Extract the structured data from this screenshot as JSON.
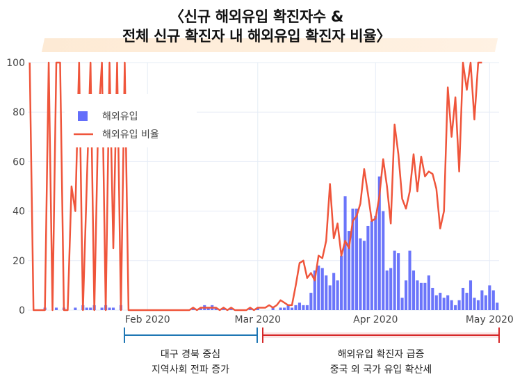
{
  "title": {
    "line1": "〈신규 해외유입 확진자수 &",
    "line2": "전체 신규 확진자 내 해외유입 확진자 비율〉"
  },
  "colors": {
    "bar": "#636efa",
    "line": "#ef553b",
    "grid": "#e5ecf6",
    "annotation_blue": "#1f77b4",
    "annotation_red": "#d62728"
  },
  "chart_data": {
    "type": "bar",
    "x_ticks": [
      "Feb 2020",
      "Mar 2020",
      "Apr 2020",
      "May 2020"
    ],
    "y_ticks": [
      "0",
      "20",
      "40",
      "60",
      "80",
      "100"
    ],
    "ylim": [
      0,
      100
    ],
    "grid": true,
    "legend_position": "top-left",
    "series": [
      {
        "name": "해외유입",
        "type": "bar",
        "values": [
          0,
          0,
          0,
          0,
          1,
          0,
          0,
          1,
          0,
          1,
          0,
          0,
          1,
          0,
          2,
          1,
          1,
          2,
          0,
          1,
          2,
          1,
          1,
          0,
          2,
          0,
          0,
          0,
          0,
          0,
          0,
          0,
          0,
          0,
          0,
          0,
          0,
          0,
          0,
          0,
          0,
          0,
          0,
          1,
          0,
          1,
          2,
          1,
          2,
          1,
          0,
          1,
          0,
          1,
          0,
          0,
          0,
          0,
          1,
          0,
          1,
          0,
          0,
          0,
          1,
          0,
          1,
          1,
          2,
          1,
          2,
          3,
          2,
          2,
          7,
          16,
          18,
          17,
          14,
          10,
          15,
          12,
          22,
          46,
          32,
          41,
          41,
          29,
          28,
          34,
          36,
          38,
          54,
          40,
          16,
          17,
          24,
          23,
          5,
          12,
          24,
          16,
          12,
          11,
          11,
          14,
          9,
          6,
          7,
          5,
          6,
          4,
          2,
          4,
          9,
          7,
          12,
          5,
          4,
          8,
          6,
          10,
          8,
          3
        ]
      },
      {
        "name": "해외유입 비율",
        "type": "line",
        "values": [
          100,
          0,
          0,
          0,
          0,
          100,
          0,
          100,
          100,
          0,
          0,
          50,
          40,
          100,
          0,
          50,
          100,
          0,
          75,
          100,
          0,
          100,
          25,
          100,
          0,
          100,
          0,
          0,
          0,
          0,
          0,
          0,
          0,
          0,
          0,
          0,
          0,
          0,
          0,
          0,
          0,
          0,
          0,
          1,
          0,
          1,
          1,
          1,
          1,
          1,
          0,
          1,
          0,
          1,
          0,
          0,
          0,
          0,
          1,
          0,
          1,
          1,
          1,
          2,
          1,
          2,
          4,
          3,
          2,
          2,
          10,
          19,
          20,
          13,
          15,
          12,
          22,
          21,
          28,
          51,
          29,
          35,
          22,
          28,
          25,
          36,
          38,
          43,
          57,
          47,
          36,
          37,
          46,
          61,
          50,
          35,
          75,
          63,
          45,
          41,
          48,
          63,
          48,
          62,
          54,
          56,
          55,
          49,
          33,
          40,
          90,
          70,
          86,
          56,
          100,
          89,
          100,
          77,
          100,
          100
        ]
      }
    ],
    "annotations": [
      "대구 경북 중심",
      "지역사회 전파 증가",
      "해외유입 확진자 급증",
      "중국 외 국가 유입 확산세"
    ]
  }
}
